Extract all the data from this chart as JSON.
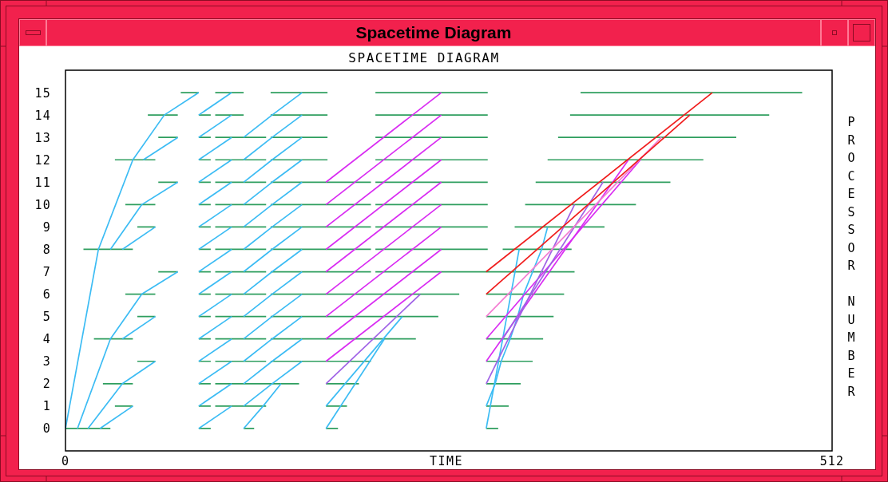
{
  "chart_data": {
    "type": "line",
    "title": "Spacetime Diagram",
    "subtitle": "SPACETIME DIAGRAM",
    "xlabel": "TIME",
    "ylabel": "PROCESSOR NUMBER",
    "xlim": [
      0,
      512
    ],
    "xticks": [
      0,
      512
    ],
    "ylim": [
      -1,
      16
    ],
    "yticks": [
      0,
      1,
      2,
      3,
      4,
      5,
      6,
      7,
      8,
      9,
      10,
      11,
      12,
      13,
      14,
      15
    ],
    "grid": false,
    "series": [
      {
        "color": "#2e9e5e",
        "x": [
          0,
          30,
          null,
          89,
          97,
          null,
          119,
          126,
          null,
          174,
          182,
          null,
          281,
          289
        ],
        "values": [
          0,
          0,
          null,
          0,
          0,
          null,
          0,
          0,
          null,
          0,
          0,
          null,
          0,
          0
        ]
      },
      {
        "color": "#2e9e5e",
        "x": [
          33,
          45,
          null,
          89,
          97,
          null,
          100,
          134,
          null,
          174,
          188,
          null,
          281,
          296
        ],
        "values": [
          1,
          1,
          null,
          1,
          1,
          null,
          1,
          1,
          null,
          1,
          1,
          null,
          1,
          1
        ]
      },
      {
        "color": "#2e9e5e",
        "x": [
          25,
          45,
          null,
          89,
          97,
          null,
          100,
          156,
          null,
          174,
          196,
          null,
          281,
          304
        ],
        "values": [
          2,
          2,
          null,
          2,
          2,
          null,
          2,
          2,
          null,
          2,
          2,
          null,
          2,
          2
        ]
      },
      {
        "color": "#2e9e5e",
        "x": [
          48,
          60,
          null,
          89,
          97,
          null,
          100,
          134,
          null,
          137,
          204,
          null,
          281,
          312
        ],
        "values": [
          3,
          3,
          null,
          3,
          3,
          null,
          3,
          3,
          null,
          3,
          3,
          null,
          3,
          3
        ]
      },
      {
        "color": "#2e9e5e",
        "x": [
          19,
          45,
          null,
          89,
          97,
          null,
          100,
          134,
          null,
          137,
          234,
          null,
          281,
          319
        ],
        "values": [
          4,
          4,
          null,
          4,
          4,
          null,
          4,
          4,
          null,
          4,
          4,
          null,
          4,
          4
        ]
      },
      {
        "color": "#2e9e5e",
        "x": [
          48,
          60,
          null,
          89,
          97,
          null,
          100,
          134,
          null,
          137,
          249,
          null,
          281,
          326
        ],
        "values": [
          5,
          5,
          null,
          5,
          5,
          null,
          5,
          5,
          null,
          5,
          5,
          null,
          5,
          5
        ]
      },
      {
        "color": "#2e9e5e",
        "x": [
          40,
          60,
          null,
          89,
          97,
          null,
          100,
          134,
          null,
          137,
          263,
          null,
          281,
          333
        ],
        "values": [
          6,
          6,
          null,
          6,
          6,
          null,
          6,
          6,
          null,
          6,
          6,
          null,
          6,
          6
        ]
      },
      {
        "color": "#2e9e5e",
        "x": [
          62,
          75,
          null,
          89,
          97,
          null,
          100,
          134,
          null,
          137,
          204,
          null,
          207,
          340
        ],
        "values": [
          7,
          7,
          null,
          7,
          7,
          null,
          7,
          7,
          null,
          7,
          7,
          null,
          7,
          7
        ]
      },
      {
        "color": "#2e9e5e",
        "x": [
          12,
          45,
          null,
          89,
          97,
          null,
          100,
          134,
          null,
          137,
          204,
          null,
          207,
          282,
          null,
          292,
          338
        ],
        "values": [
          8,
          8,
          null,
          8,
          8,
          null,
          8,
          8,
          null,
          8,
          8,
          null,
          8,
          8,
          null,
          8,
          8
        ]
      },
      {
        "color": "#2e9e5e",
        "x": [
          48,
          60,
          null,
          89,
          97,
          null,
          100,
          134,
          null,
          137,
          204,
          null,
          207,
          282,
          null,
          300,
          360
        ],
        "values": [
          9,
          9,
          null,
          9,
          9,
          null,
          9,
          9,
          null,
          9,
          9,
          null,
          9,
          9,
          null,
          9,
          9
        ]
      },
      {
        "color": "#2e9e5e",
        "x": [
          40,
          60,
          null,
          89,
          97,
          null,
          100,
          134,
          null,
          137,
          204,
          null,
          207,
          282,
          null,
          307,
          381
        ],
        "values": [
          10,
          10,
          null,
          10,
          10,
          null,
          10,
          10,
          null,
          10,
          10,
          null,
          10,
          10,
          null,
          10,
          10
        ]
      },
      {
        "color": "#2e9e5e",
        "x": [
          62,
          75,
          null,
          89,
          97,
          null,
          100,
          134,
          null,
          137,
          204,
          null,
          207,
          282,
          null,
          314,
          404
        ],
        "values": [
          11,
          11,
          null,
          11,
          11,
          null,
          11,
          11,
          null,
          11,
          11,
          null,
          11,
          11,
          null,
          11,
          11
        ]
      },
      {
        "color": "#2e9e5e",
        "x": [
          33,
          60,
          null,
          89,
          97,
          null,
          100,
          134,
          null,
          137,
          175,
          null,
          207,
          282,
          null,
          322,
          426
        ],
        "values": [
          12,
          12,
          null,
          12,
          12,
          null,
          12,
          12,
          null,
          12,
          12,
          null,
          12,
          12,
          null,
          12,
          12
        ]
      },
      {
        "color": "#2e9e5e",
        "x": [
          62,
          75,
          null,
          89,
          97,
          null,
          100,
          134,
          null,
          137,
          175,
          null,
          207,
          282,
          null,
          329,
          448
        ],
        "values": [
          13,
          13,
          null,
          13,
          13,
          null,
          13,
          13,
          null,
          13,
          13,
          null,
          13,
          13,
          null,
          13,
          13
        ]
      },
      {
        "color": "#2e9e5e",
        "x": [
          55,
          75,
          null,
          89,
          97,
          null,
          100,
          119,
          null,
          137,
          175,
          null,
          207,
          282,
          null,
          337,
          470
        ],
        "values": [
          14,
          14,
          null,
          14,
          14,
          null,
          14,
          14,
          null,
          14,
          14,
          null,
          14,
          14,
          null,
          14,
          14
        ]
      },
      {
        "color": "#2e9e5e",
        "x": [
          77,
          89,
          null,
          100,
          119,
          null,
          137,
          175,
          null,
          207,
          282,
          null,
          344,
          492
        ],
        "values": [
          15,
          15,
          null,
          15,
          15,
          null,
          15,
          15,
          null,
          15,
          15,
          null,
          15,
          15
        ]
      },
      {
        "color": "#3cbcf4",
        "x": [
          0,
          22,
          45,
          66,
          89
        ],
        "values": [
          0,
          8,
          12,
          14,
          15
        ]
      },
      {
        "color": "#3cbcf4",
        "x": [
          52,
          75
        ],
        "values": [
          12,
          13
        ]
      },
      {
        "color": "#3cbcf4",
        "x": [
          30,
          51,
          75
        ],
        "values": [
          8,
          10,
          11
        ]
      },
      {
        "color": "#3cbcf4",
        "x": [
          38,
          60
        ],
        "values": [
          8,
          9
        ]
      },
      {
        "color": "#3cbcf4",
        "x": [
          8,
          30,
          51,
          75
        ],
        "values": [
          0,
          4,
          6,
          7
        ]
      },
      {
        "color": "#3cbcf4",
        "x": [
          38,
          60
        ],
        "values": [
          4,
          5
        ]
      },
      {
        "color": "#3cbcf4",
        "x": [
          15,
          38,
          60
        ],
        "values": [
          0,
          2,
          3
        ]
      },
      {
        "color": "#3cbcf4",
        "x": [
          23,
          45
        ],
        "values": [
          0,
          1
        ]
      },
      {
        "color": "#3cbcf4",
        "x": [
          89,
          111
        ],
        "values": [
          0,
          1
        ]
      },
      {
        "color": "#3cbcf4",
        "x": [
          89,
          111
        ],
        "values": [
          1,
          2
        ]
      },
      {
        "color": "#3cbcf4",
        "x": [
          89,
          111
        ],
        "values": [
          2,
          3
        ]
      },
      {
        "color": "#3cbcf4",
        "x": [
          89,
          111
        ],
        "values": [
          3,
          4
        ]
      },
      {
        "color": "#3cbcf4",
        "x": [
          89,
          111
        ],
        "values": [
          4,
          5
        ]
      },
      {
        "color": "#3cbcf4",
        "x": [
          89,
          111
        ],
        "values": [
          5,
          6
        ]
      },
      {
        "color": "#3cbcf4",
        "x": [
          89,
          111
        ],
        "values": [
          6,
          7
        ]
      },
      {
        "color": "#3cbcf4",
        "x": [
          89,
          111
        ],
        "values": [
          7,
          8
        ]
      },
      {
        "color": "#3cbcf4",
        "x": [
          89,
          111
        ],
        "values": [
          8,
          9
        ]
      },
      {
        "color": "#3cbcf4",
        "x": [
          89,
          111
        ],
        "values": [
          9,
          10
        ]
      },
      {
        "color": "#3cbcf4",
        "x": [
          89,
          111
        ],
        "values": [
          10,
          11
        ]
      },
      {
        "color": "#3cbcf4",
        "x": [
          89,
          111
        ],
        "values": [
          11,
          12
        ]
      },
      {
        "color": "#3cbcf4",
        "x": [
          89,
          111
        ],
        "values": [
          12,
          13
        ]
      },
      {
        "color": "#3cbcf4",
        "x": [
          89,
          111
        ],
        "values": [
          13,
          14
        ]
      },
      {
        "color": "#3cbcf4",
        "x": [
          89,
          111
        ],
        "values": [
          14,
          15
        ]
      },
      {
        "color": "#3cbcf4",
        "x": [
          119,
          132,
          144
        ],
        "values": [
          0,
          1,
          2
        ]
      },
      {
        "color": "#3cbcf4",
        "x": [
          119,
          138,
          158
        ],
        "values": [
          1,
          2,
          3
        ]
      },
      {
        "color": "#3cbcf4",
        "x": [
          119,
          138,
          158
        ],
        "values": [
          2,
          3,
          4
        ]
      },
      {
        "color": "#3cbcf4",
        "x": [
          119,
          138,
          158
        ],
        "values": [
          3,
          4,
          5
        ]
      },
      {
        "color": "#3cbcf4",
        "x": [
          119,
          138,
          158
        ],
        "values": [
          4,
          5,
          6
        ]
      },
      {
        "color": "#3cbcf4",
        "x": [
          119,
          138,
          158
        ],
        "values": [
          5,
          6,
          7
        ]
      },
      {
        "color": "#3cbcf4",
        "x": [
          119,
          138,
          158
        ],
        "values": [
          6,
          7,
          8
        ]
      },
      {
        "color": "#3cbcf4",
        "x": [
          119,
          138,
          158
        ],
        "values": [
          7,
          8,
          9
        ]
      },
      {
        "color": "#3cbcf4",
        "x": [
          119,
          138,
          158
        ],
        "values": [
          8,
          9,
          10
        ]
      },
      {
        "color": "#3cbcf4",
        "x": [
          119,
          138,
          158
        ],
        "values": [
          9,
          10,
          11
        ]
      },
      {
        "color": "#3cbcf4",
        "x": [
          119,
          138,
          158
        ],
        "values": [
          10,
          11,
          12
        ]
      },
      {
        "color": "#3cbcf4",
        "x": [
          119,
          138,
          158
        ],
        "values": [
          11,
          12,
          13
        ]
      },
      {
        "color": "#3cbcf4",
        "x": [
          119,
          138,
          158
        ],
        "values": [
          12,
          13,
          14
        ]
      },
      {
        "color": "#3cbcf4",
        "x": [
          119,
          138,
          158
        ],
        "values": [
          13,
          14,
          15
        ]
      },
      {
        "color": "#3cbcf4",
        "x": [
          174,
          213
        ],
        "values": [
          0,
          4
        ]
      },
      {
        "color": "#3cbcf4",
        "x": [
          174,
          225
        ],
        "values": [
          1,
          5
        ]
      },
      {
        "color": "#3cbcf4",
        "x": [
          281,
          303
        ],
        "values": [
          0,
          8
        ]
      },
      {
        "color": "#3cbcf4",
        "x": [
          281,
          287,
          291,
          297,
          302,
          306,
          312,
          318,
          322
        ],
        "values": [
          1,
          2,
          3,
          4,
          5,
          6,
          7,
          8,
          9
        ]
      },
      {
        "color": "#d92cf2",
        "x": [
          174,
          251
        ],
        "values": [
          3,
          7
        ]
      },
      {
        "color": "#d92cf2",
        "x": [
          174,
          251
        ],
        "values": [
          4,
          8
        ]
      },
      {
        "color": "#d92cf2",
        "x": [
          174,
          251
        ],
        "values": [
          5,
          9
        ]
      },
      {
        "color": "#d92cf2",
        "x": [
          174,
          251
        ],
        "values": [
          6,
          10
        ]
      },
      {
        "color": "#d92cf2",
        "x": [
          174,
          251
        ],
        "values": [
          7,
          11
        ]
      },
      {
        "color": "#d92cf2",
        "x": [
          174,
          251
        ],
        "values": [
          8,
          12
        ]
      },
      {
        "color": "#d92cf2",
        "x": [
          174,
          251
        ],
        "values": [
          9,
          13
        ]
      },
      {
        "color": "#d92cf2",
        "x": [
          174,
          251
        ],
        "values": [
          10,
          14
        ]
      },
      {
        "color": "#d92cf2",
        "x": [
          174,
          251
        ],
        "values": [
          11,
          15
        ]
      },
      {
        "color": "#d92cf2",
        "x": [
          281,
          376
        ],
        "values": [
          3,
          12
        ]
      },
      {
        "color": "#d92cf2",
        "x": [
          281,
          384
        ],
        "values": [
          4,
          12
        ]
      },
      {
        "color": "#a062e6",
        "x": [
          174,
          237
        ],
        "values": [
          2,
          6
        ]
      },
      {
        "color": "#a062e6",
        "x": [
          281,
          340
        ],
        "values": [
          2,
          10
        ]
      },
      {
        "color": "#a062e6",
        "x": [
          292,
          359
        ],
        "values": [
          4,
          11
        ]
      },
      {
        "color": "#f47cd2",
        "x": [
          281,
          398
        ],
        "values": [
          5,
          13
        ]
      },
      {
        "color": "#f01c1c",
        "x": [
          281,
          417
        ],
        "values": [
          6,
          14
        ]
      },
      {
        "color": "#f01c1c",
        "x": [
          281,
          432
        ],
        "values": [
          7,
          15
        ]
      }
    ]
  }
}
